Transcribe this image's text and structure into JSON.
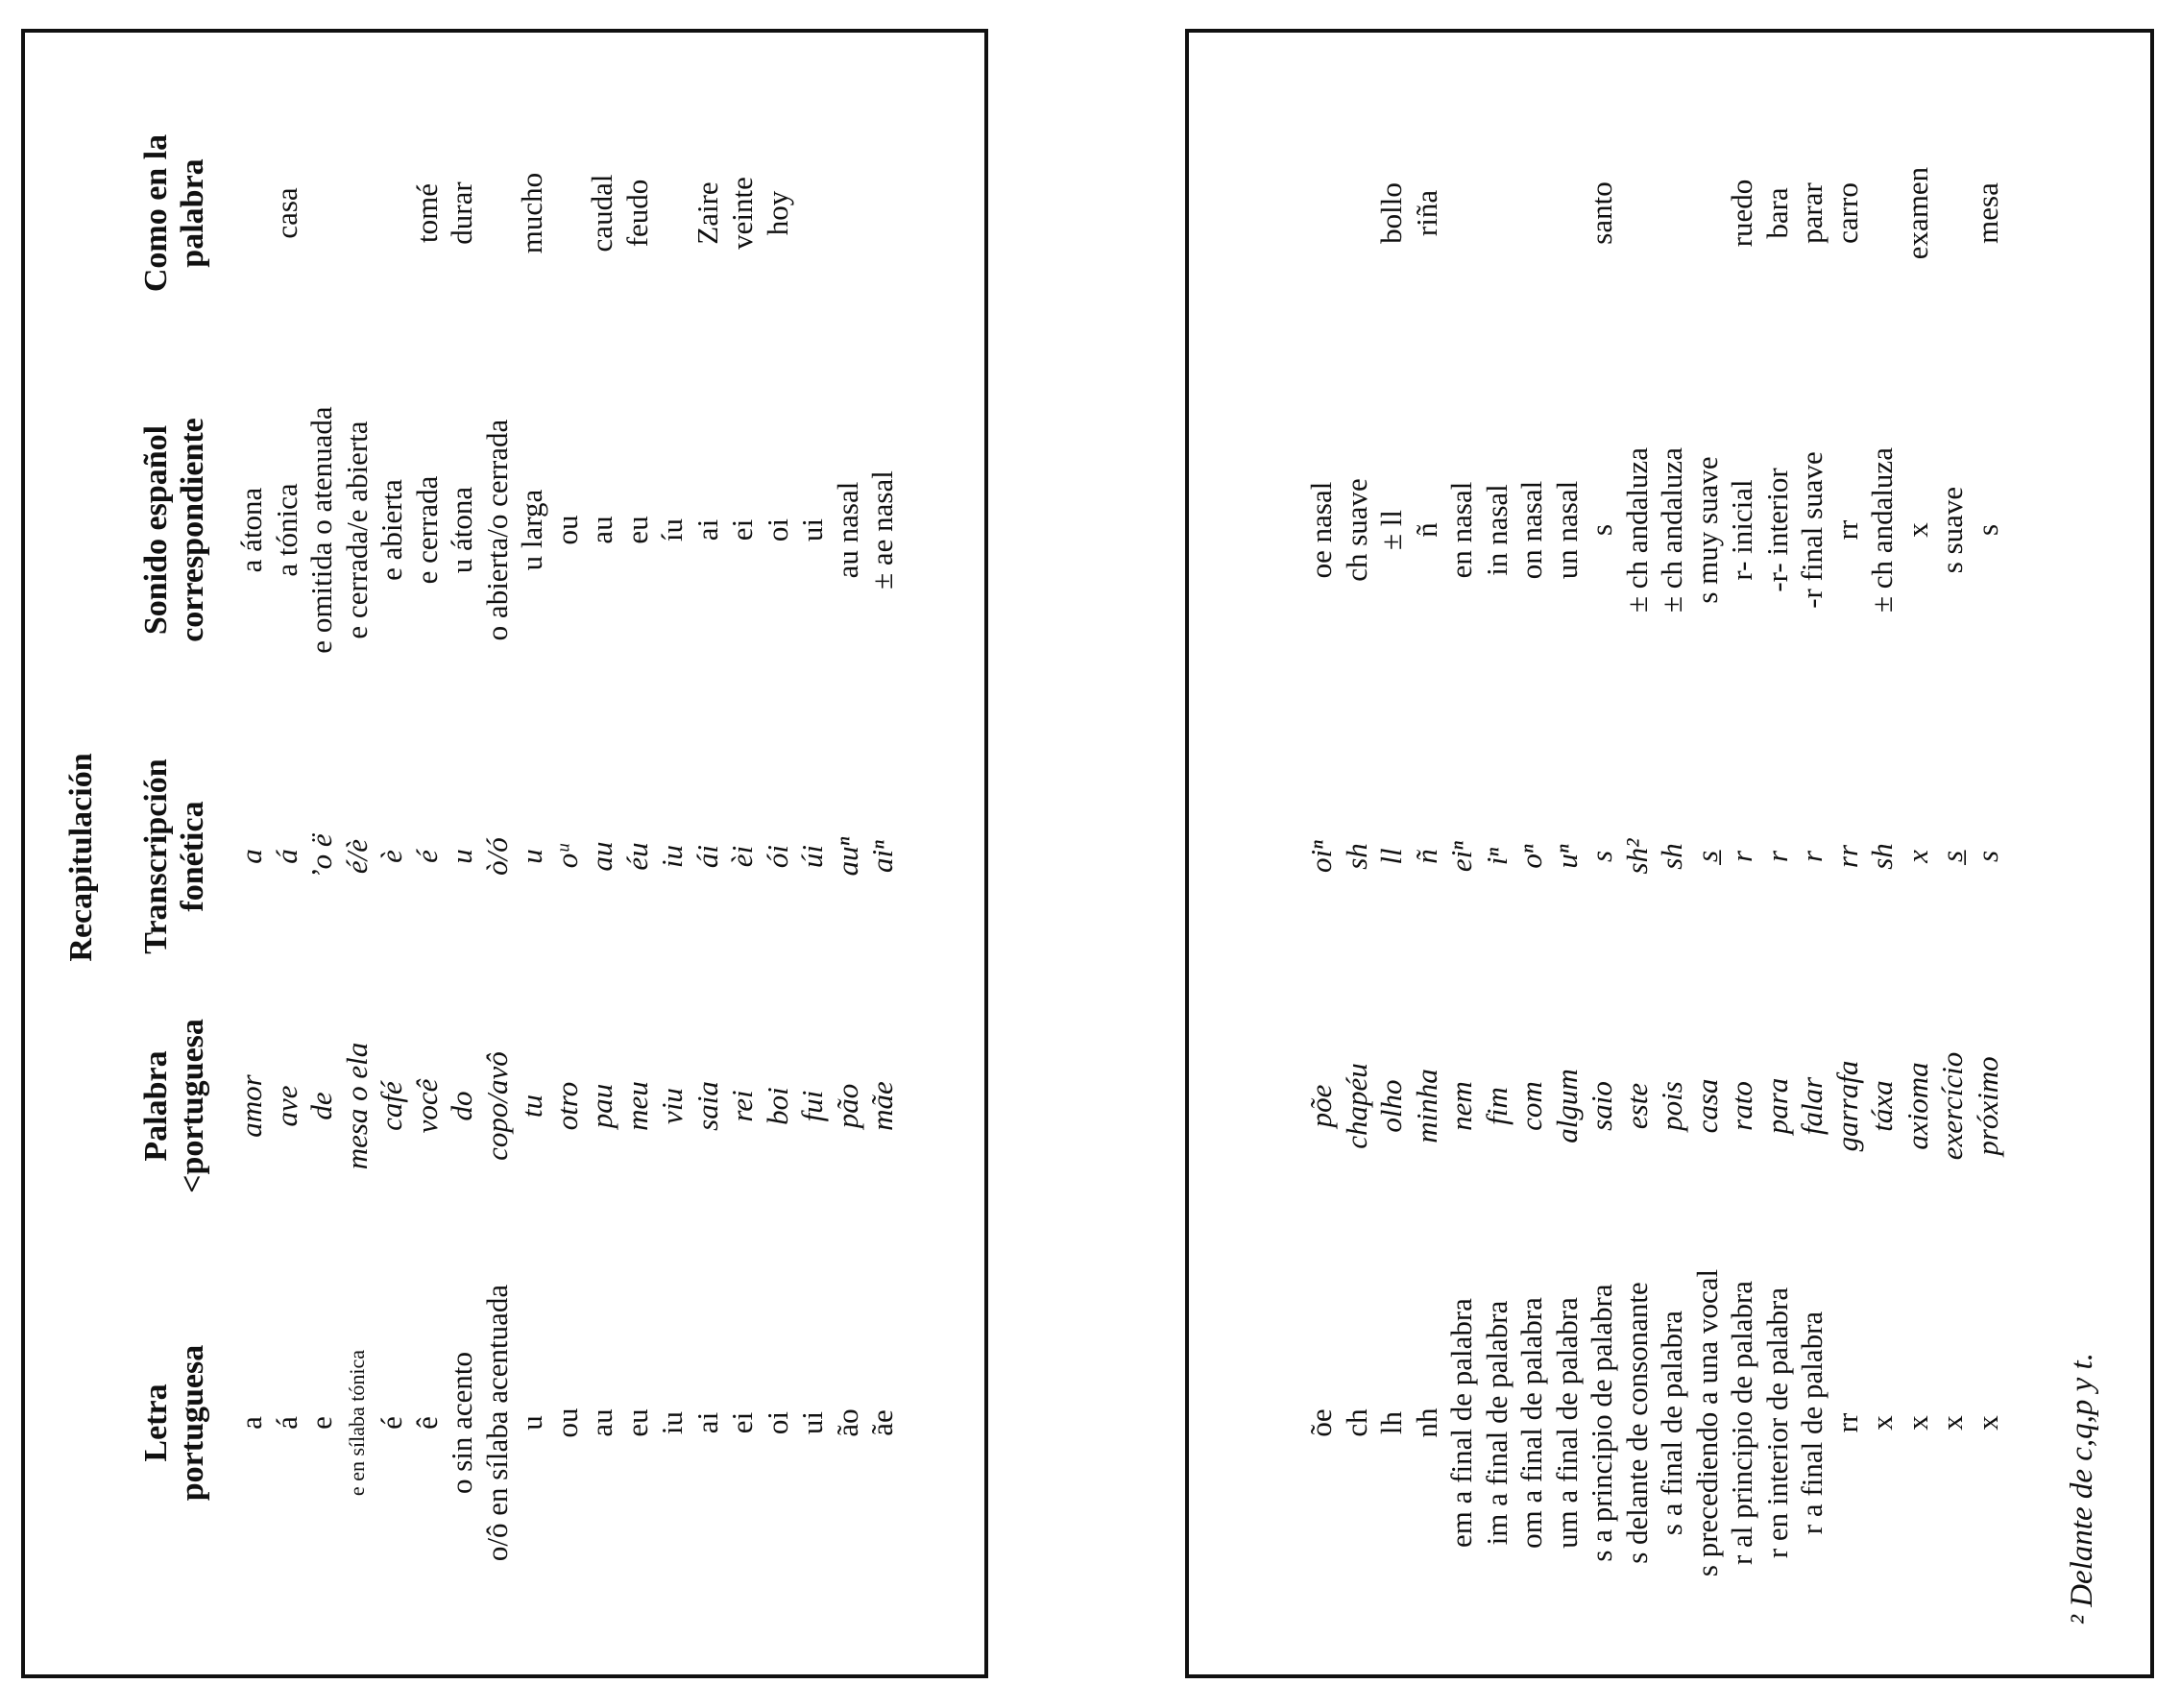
{
  "page_title": "Recapitulación",
  "headers": {
    "letra": [
      "Letra",
      "portuguesa"
    ],
    "palabra": [
      "Palabra",
      "<portuguesa"
    ],
    "transcripcion": [
      "Transcripción",
      "fonética"
    ],
    "sonido": [
      "Sonido español",
      "correspondiente"
    ],
    "como": [
      "Como en la",
      "palabra"
    ]
  },
  "table1": [
    {
      "letra": "a",
      "palabra": "amor",
      "transcripcion": "a",
      "sonido": "a átona",
      "como": ""
    },
    {
      "letra": "á",
      "palabra": "ave",
      "transcripcion": "á",
      "sonido": "a tónica",
      "como": "casa"
    },
    {
      "letra": "e",
      "palabra": "de",
      "transcripcion": "’o ë",
      "sonido": "e omitida o atenuada",
      "como": ""
    },
    {
      "letra": "e en sílaba tónica",
      "palabra": "mesa o ela",
      "transcripcion": "é/è",
      "sonido": "e cerrada/e abierta",
      "como": ""
    },
    {
      "letra": "é",
      "palabra": "café",
      "transcripcion": "è",
      "sonido": "e abierta",
      "como": ""
    },
    {
      "letra": "ê",
      "palabra": "você",
      "transcripcion": "é",
      "sonido": "e cerrada",
      "como": "tomé"
    },
    {
      "letra": "o sin acento",
      "palabra": "do",
      "transcripcion": "u",
      "sonido": "u átona",
      "como": "durar"
    },
    {
      "letra": "o/ô en sílaba acentuada",
      "palabra": "copo/avô",
      "transcripcion": "ò/ó",
      "sonido": "o abierta/o cerrada",
      "como": ""
    },
    {
      "letra": "u",
      "palabra": "tu",
      "transcripcion": "u",
      "sonido": "u larga",
      "como": "mucho"
    },
    {
      "letra": "ou",
      "palabra": "otro",
      "transcripcion": "oᵘ",
      "sonido": "ou",
      "como": ""
    },
    {
      "letra": "au",
      "palabra": "pau",
      "transcripcion": "au",
      "sonido": "au",
      "como": "caudal"
    },
    {
      "letra": "eu",
      "palabra": "meu",
      "transcripcion": "éu",
      "sonido": "eu",
      "como": "feudo"
    },
    {
      "letra": "iu",
      "palabra": "viu",
      "transcripcion": "iu",
      "sonido": "íu",
      "como": ""
    },
    {
      "letra": "ai",
      "palabra": "saia",
      "transcripcion": "ái",
      "sonido": "ai",
      "como": "Zaire"
    },
    {
      "letra": "ei",
      "palabra": "rei",
      "transcripcion": "èi",
      "sonido": "ei",
      "como": "veinte"
    },
    {
      "letra": "oi",
      "palabra": "boi",
      "transcripcion": "ói",
      "sonido": "oi",
      "como": "hoy"
    },
    {
      "letra": "ui",
      "palabra": "fui",
      "transcripcion": "úi",
      "sonido": "ui",
      "como": ""
    },
    {
      "letra": "ão",
      "palabra": "pão",
      "transcripcion": "auⁿ",
      "sonido": "au nasal",
      "como": ""
    },
    {
      "letra": "ãe",
      "palabra": "mãe",
      "transcripcion": "aiⁿ",
      "sonido": "± ae nasal",
      "como": ""
    }
  ],
  "table2": [
    {
      "letra": "õe",
      "palabra": "põe",
      "transcripcion": "oiⁿ",
      "sonido": "oe nasal",
      "como": ""
    },
    {
      "letra": "ch",
      "palabra": "chapéu",
      "transcripcion": "sh",
      "sonido": "ch suave",
      "como": ""
    },
    {
      "letra": "lh",
      "palabra": "olho",
      "transcripcion": "ll",
      "sonido": "± ll",
      "como": "bollo"
    },
    {
      "letra": "nh",
      "palabra": "minha",
      "transcripcion": "ñ",
      "sonido": "ñ",
      "como": "riña"
    },
    {
      "letra": "em a final de palabra",
      "palabra": "nem",
      "transcripcion": "eiⁿ",
      "sonido": "en nasal",
      "como": ""
    },
    {
      "letra": "im a final de palabra",
      "palabra": "fim",
      "transcripcion": "iⁿ",
      "sonido": "in nasal",
      "como": ""
    },
    {
      "letra": "om a final de palabra",
      "palabra": "com",
      "transcripcion": "oⁿ",
      "sonido": "on nasal",
      "como": ""
    },
    {
      "letra": "um a final de palabra",
      "palabra": "algum",
      "transcripcion": "uⁿ",
      "sonido": "un nasal",
      "como": ""
    },
    {
      "letra": "s a principio de palabra",
      "palabra": "saio",
      "transcripcion": "s",
      "sonido": "s",
      "como": "santo"
    },
    {
      "letra": "s delante de consonante",
      "palabra": "este",
      "transcripcion": "sh²",
      "sonido": "± ch andaluza",
      "como": ""
    },
    {
      "letra": "s a final de palabra",
      "palabra": "pois",
      "transcripcion": "sh",
      "sonido": "± ch andaluza",
      "como": ""
    },
    {
      "letra": "s precediendo a una vocal",
      "palabra": "casa",
      "transcripcion": "s̲",
      "sonido": "s muy suave",
      "como": ""
    },
    {
      "letra": "r al principio de palabra",
      "palabra": "rato",
      "transcripcion": "r",
      "sonido": "r- inicial",
      "como": "ruedo"
    },
    {
      "letra": "r en interior de palabra",
      "palabra": "para",
      "transcripcion": "r",
      "sonido": "-r- interior",
      "como": "bara"
    },
    {
      "letra": "r a final de palabra",
      "palabra": "falar",
      "transcripcion": "r",
      "sonido": "-r final suave",
      "como": "parar"
    },
    {
      "letra": "rr",
      "palabra": "garrafa",
      "transcripcion": "rr",
      "sonido": "rr",
      "como": "carro"
    },
    {
      "letra": "x",
      "palabra": "táxa",
      "transcripcion": "sh",
      "sonido": "± ch andaluza",
      "como": ""
    },
    {
      "letra": "x",
      "palabra": "axioma",
      "transcripcion": "x",
      "sonido": "x",
      "como": "examen"
    },
    {
      "letra": "x",
      "palabra": "exercício",
      "transcripcion": "s̲",
      "sonido": "s suave",
      "como": ""
    },
    {
      "letra": "x",
      "palabra": "próximo",
      "transcripcion": "s",
      "sonido": "s",
      "como": "mesa"
    }
  ],
  "footnote": "² Delante de c,q,p y t."
}
